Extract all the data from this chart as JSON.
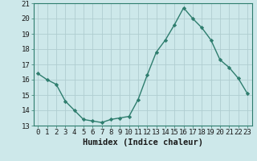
{
  "x": [
    0,
    1,
    2,
    3,
    4,
    5,
    6,
    7,
    8,
    9,
    10,
    11,
    12,
    13,
    14,
    15,
    16,
    17,
    18,
    19,
    20,
    21,
    22,
    23
  ],
  "y": [
    16.4,
    16.0,
    15.7,
    14.6,
    14.0,
    13.4,
    13.3,
    13.2,
    13.4,
    13.5,
    13.6,
    14.7,
    16.3,
    17.8,
    18.6,
    19.6,
    20.7,
    20.0,
    19.4,
    18.6,
    17.3,
    16.8,
    16.1,
    15.1
  ],
  "line_color": "#2e7d6e",
  "marker": "D",
  "marker_size": 2.2,
  "bg_color": "#cde8ea",
  "grid_color": "#b0cdd0",
  "xlabel": "Humidex (Indice chaleur)",
  "ylim": [
    13,
    21
  ],
  "xlim": [
    -0.5,
    23.5
  ],
  "yticks": [
    13,
    14,
    15,
    16,
    17,
    18,
    19,
    20,
    21
  ],
  "xticks": [
    0,
    1,
    2,
    3,
    4,
    5,
    6,
    7,
    8,
    9,
    10,
    11,
    12,
    13,
    14,
    15,
    16,
    17,
    18,
    19,
    20,
    21,
    22,
    23
  ],
  "tick_label_fontsize": 6.5,
  "xlabel_fontsize": 7.5,
  "line_width": 1.0
}
